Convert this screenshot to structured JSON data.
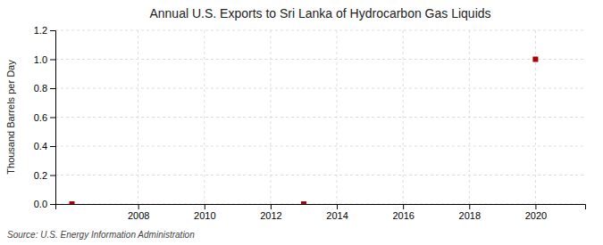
{
  "chart_data": {
    "type": "scatter",
    "title": "Annual U.S. Exports to Sri Lanka of Hydrocarbon Gas Liquids",
    "y_label": "Thousand Barrels per Day",
    "annotations": [
      "Source: U.S. Energy Information Administration"
    ],
    "x": [
      2006,
      2013,
      2020
    ],
    "values": [
      0.0,
      0.0,
      1.0
    ],
    "color": "#AA0000",
    "marker": "square",
    "xlim": [
      2005.5,
      2021.5
    ],
    "ylim": [
      0.0,
      1.2
    ],
    "xticks": [
      2008,
      2010,
      2012,
      2014,
      2016,
      2018,
      2020
    ],
    "yticks": [
      {
        "value": 0.0,
        "label": "0.0"
      },
      0.2,
      0.4,
      0.6,
      0.8,
      {
        "value": 1.0,
        "label": "1.0"
      },
      1.2
    ],
    "grid": true
  }
}
